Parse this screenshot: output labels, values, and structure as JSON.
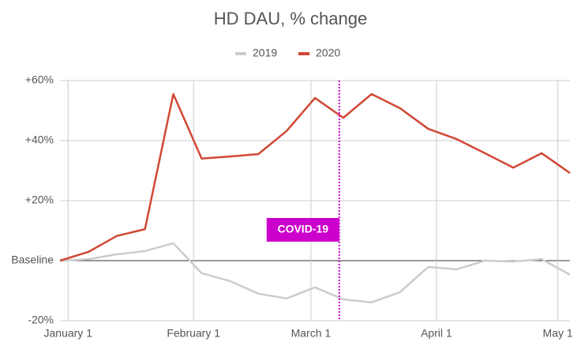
{
  "chart_data": {
    "type": "line",
    "title": "HD DAU, % change",
    "x": [
      -2,
      5,
      12,
      19,
      26,
      33,
      40,
      47,
      54,
      61,
      68,
      75,
      82,
      89,
      96,
      103,
      110,
      117,
      124
    ],
    "series": [
      {
        "name": "2019",
        "color": "#cccccc",
        "values": [
          0,
          0.5,
          2.1,
          3.2,
          5.8,
          -4.2,
          -6.8,
          -11,
          -12.6,
          -8.9,
          -12.9,
          -13.9,
          -10.5,
          -2.1,
          -2.9,
          0,
          -0.3,
          0.5,
          -4.7
        ]
      },
      {
        "name": "2020",
        "color": "#d14836",
        "values": [
          0,
          2.9,
          8.2,
          10.5,
          55.5,
          34,
          34.7,
          35.5,
          43.2,
          54.2,
          47.6,
          55.5,
          50.8,
          43.9,
          40.5,
          35.8,
          31,
          35.8,
          29.2
        ]
      }
    ],
    "xlim": [
      -2,
      124
    ],
    "xticks": [
      {
        "value": 0,
        "label": "January 1"
      },
      {
        "value": 31,
        "label": "February 1"
      },
      {
        "value": 60,
        "label": "March 1"
      },
      {
        "value": 91,
        "label": "April 1"
      },
      {
        "value": 121,
        "label": "May 1"
      }
    ],
    "ylim": [
      -20,
      60
    ],
    "yticks": [
      {
        "value": -20,
        "label": "-20%"
      },
      {
        "value": 0,
        "label": "Baseline"
      },
      {
        "value": 20,
        "label": "+20%"
      },
      {
        "value": 40,
        "label": "+40%"
      },
      {
        "value": 60,
        "label": "+60%"
      }
    ],
    "grid": true,
    "legend": "top",
    "annotations": [
      {
        "label": "COVID-19",
        "x": 67,
        "color": "#cc00cc"
      }
    ]
  }
}
